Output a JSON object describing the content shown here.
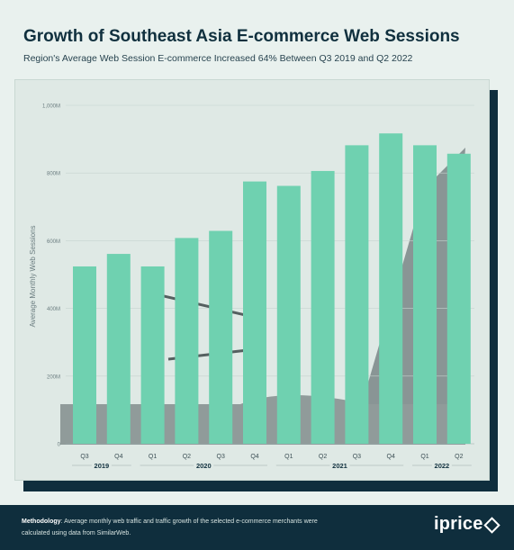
{
  "header": {
    "title": "Growth of Southeast Asia E-commerce Web Sessions",
    "subtitle": "Region's Average Web Session E-commerce Increased 64% Between Q3 2019 and Q2 2022"
  },
  "chart_data": {
    "type": "bar",
    "ylabel": "Average Monthly Web Sessions",
    "ylim": [
      0,
      1000
    ],
    "yticks": [
      0,
      200,
      400,
      600,
      800,
      1000
    ],
    "ytick_labels": [
      "0",
      "200M",
      "400M",
      "600M",
      "800M",
      "1,000M"
    ],
    "categories": [
      "Q3",
      "Q4",
      "Q1",
      "Q2",
      "Q3",
      "Q4",
      "Q1",
      "Q2",
      "Q3",
      "Q4",
      "Q1",
      "Q2"
    ],
    "years": [
      {
        "label": "2019",
        "start": 0,
        "end": 1
      },
      {
        "label": "2020",
        "start": 2,
        "end": 5
      },
      {
        "label": "2021",
        "start": 6,
        "end": 9
      },
      {
        "label": "2022",
        "start": 10,
        "end": 11
      }
    ],
    "values": [
      524,
      561,
      524,
      608,
      629,
      775,
      762,
      806,
      882,
      917,
      882,
      857
    ],
    "bar_color": "#6fd1b0",
    "grid": true
  },
  "footer": {
    "methodology_label": "Methodology",
    "methodology_text": ": Average monthly web traffic and traffic growth of the selected e-commerce merchants were calculated using data from SimilarWeb.",
    "logo_text": "iprice"
  }
}
